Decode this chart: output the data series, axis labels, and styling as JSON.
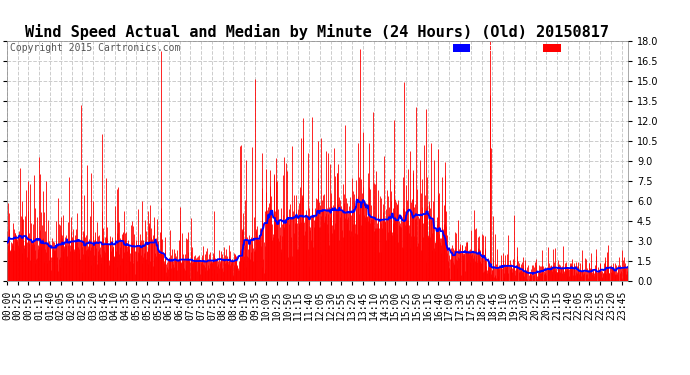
{
  "title": "Wind Speed Actual and Median by Minute (24 Hours) (Old) 20150817",
  "copyright": "Copyright 2015 Cartronics.com",
  "ylim": [
    0,
    18.0
  ],
  "yticks": [
    0.0,
    1.5,
    3.0,
    4.5,
    6.0,
    7.5,
    9.0,
    10.5,
    12.0,
    13.5,
    15.0,
    16.5,
    18.0
  ],
  "fig_bg_color": "#ffffff",
  "plot_bg_color": "#ffffff",
  "grid_color": "#cccccc",
  "wind_color": "#ff0000",
  "median_color": "#0000ff",
  "title_fontsize": 11,
  "copyright_fontsize": 7,
  "tick_fontsize": 7,
  "wind_lw": 0.6,
  "median_lw": 1.3,
  "x_tick_step": 25
}
